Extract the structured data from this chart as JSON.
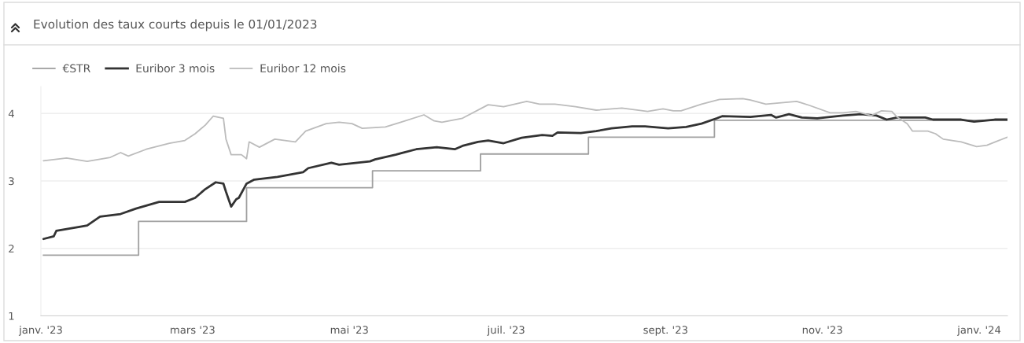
{
  "chart_data": {
    "type": "line",
    "title": "Evolution des taux courts depuis le 01/01/2023",
    "xlim": [
      "2023-01-01",
      "2024-01-12"
    ],
    "xticks": [
      {
        "value": "2023-01-01",
        "label": "janv. '23"
      },
      {
        "value": "2023-03-01",
        "label": "mars '23"
      },
      {
        "value": "2023-05-01",
        "label": "mai '23"
      },
      {
        "value": "2023-07-01",
        "label": "juil. '23"
      },
      {
        "value": "2023-09-01",
        "label": "sept. '23"
      },
      {
        "value": "2023-11-01",
        "label": "nov. '23"
      },
      {
        "value": "2024-01-01",
        "label": "janv. '24"
      }
    ],
    "ylim": [
      1,
      4.4
    ],
    "yticks": [
      1,
      2,
      3,
      4
    ],
    "grid": "y",
    "legend": "top left",
    "series": [
      {
        "name": "€STR",
        "type": "step",
        "color": "#a0a0a0",
        "x": [
          "2023-01-02",
          "2023-02-08",
          "2023-03-22",
          "2023-05-10",
          "2023-06-21",
          "2023-08-02",
          "2023-09-20",
          "2024-01-12"
        ],
        "values": [
          1.9,
          2.4,
          2.9,
          3.15,
          3.4,
          3.65,
          3.9,
          3.9
        ]
      },
      {
        "name": "Euribor 3 mois",
        "color": "#333333",
        "x": [
          "2023-01-02",
          "2023-01-06",
          "2023-01-07",
          "2023-01-16",
          "2023-01-19",
          "2023-01-24",
          "2023-02-01",
          "2023-02-07",
          "2023-02-16",
          "2023-02-26",
          "2023-03-02",
          "2023-03-06",
          "2023-03-10",
          "2023-03-13",
          "2023-03-14",
          "2023-03-16",
          "2023-03-18",
          "2023-03-19",
          "2023-03-22",
          "2023-03-25",
          "2023-04-03",
          "2023-04-13",
          "2023-04-15",
          "2023-04-24",
          "2023-04-27",
          "2023-05-09",
          "2023-05-11",
          "2023-05-19",
          "2023-05-27",
          "2023-06-04",
          "2023-06-11",
          "2023-06-14",
          "2023-06-20",
          "2023-06-24",
          "2023-06-30",
          "2023-07-07",
          "2023-07-15",
          "2023-07-19",
          "2023-07-21",
          "2023-07-30",
          "2023-08-05",
          "2023-08-11",
          "2023-08-19",
          "2023-08-24",
          "2023-09-02",
          "2023-09-09",
          "2023-09-15",
          "2023-09-21",
          "2023-09-23",
          "2023-10-04",
          "2023-10-12",
          "2023-10-14",
          "2023-10-19",
          "2023-10-24",
          "2023-10-30",
          "2023-11-09",
          "2023-11-16",
          "2023-11-22",
          "2023-11-26",
          "2023-11-30",
          "2023-12-11",
          "2023-12-14",
          "2023-12-25",
          "2023-12-30",
          "2024-01-07",
          "2024-01-12"
        ],
        "values": [
          2.14,
          2.18,
          2.26,
          2.32,
          2.34,
          2.47,
          2.51,
          2.59,
          2.69,
          2.69,
          2.75,
          2.88,
          2.98,
          2.96,
          2.84,
          2.62,
          2.73,
          2.75,
          2.96,
          3.02,
          3.06,
          3.13,
          3.19,
          3.27,
          3.24,
          3.29,
          3.32,
          3.39,
          3.47,
          3.5,
          3.47,
          3.52,
          3.58,
          3.6,
          3.56,
          3.64,
          3.68,
          3.67,
          3.72,
          3.71,
          3.74,
          3.78,
          3.81,
          3.81,
          3.78,
          3.8,
          3.85,
          3.93,
          3.96,
          3.95,
          3.98,
          3.94,
          3.99,
          3.94,
          3.93,
          3.97,
          3.99,
          3.97,
          3.91,
          3.94,
          3.94,
          3.91,
          3.91,
          3.88,
          3.91,
          3.91
        ]
      },
      {
        "name": "Euribor 12 mois",
        "color": "#bcbcbc",
        "x": [
          "2023-01-02",
          "2023-01-11",
          "2023-01-19",
          "2023-01-28",
          "2023-02-01",
          "2023-02-04",
          "2023-02-11",
          "2023-02-20",
          "2023-02-26",
          "2023-03-02",
          "2023-03-06",
          "2023-03-09",
          "2023-03-13",
          "2023-03-14",
          "2023-03-16",
          "2023-03-20",
          "2023-03-22",
          "2023-03-23",
          "2023-03-27",
          "2023-04-02",
          "2023-04-10",
          "2023-04-14",
          "2023-04-22",
          "2023-04-27",
          "2023-05-02",
          "2023-05-06",
          "2023-05-15",
          "2023-05-21",
          "2023-05-30",
          "2023-06-03",
          "2023-06-06",
          "2023-06-14",
          "2023-06-24",
          "2023-06-30",
          "2023-07-09",
          "2023-07-14",
          "2023-07-20",
          "2023-07-28",
          "2023-08-05",
          "2023-08-15",
          "2023-08-25",
          "2023-08-31",
          "2023-09-04",
          "2023-09-07",
          "2023-09-15",
          "2023-09-22",
          "2023-10-01",
          "2023-10-04",
          "2023-10-10",
          "2023-10-16",
          "2023-10-22",
          "2023-10-27",
          "2023-11-04",
          "2023-11-09",
          "2023-11-14",
          "2023-11-20",
          "2023-11-24",
          "2023-11-28",
          "2023-11-30",
          "2023-12-04",
          "2023-12-06",
          "2023-12-12",
          "2023-12-15",
          "2023-12-18",
          "2023-12-25",
          "2023-12-31",
          "2024-01-04",
          "2024-01-12"
        ],
        "values": [
          3.3,
          3.34,
          3.29,
          3.35,
          3.42,
          3.37,
          3.47,
          3.56,
          3.6,
          3.7,
          3.83,
          3.96,
          3.93,
          3.62,
          3.39,
          3.39,
          3.33,
          3.58,
          3.5,
          3.62,
          3.58,
          3.74,
          3.85,
          3.87,
          3.85,
          3.78,
          3.8,
          3.87,
          3.98,
          3.89,
          3.87,
          3.93,
          4.13,
          4.1,
          4.18,
          4.14,
          4.14,
          4.1,
          4.05,
          4.08,
          4.03,
          4.07,
          4.04,
          4.04,
          4.14,
          4.21,
          4.22,
          4.2,
          4.14,
          4.16,
          4.18,
          4.12,
          4.01,
          4.01,
          4.03,
          3.97,
          4.04,
          4.03,
          3.95,
          3.85,
          3.74,
          3.74,
          3.7,
          3.62,
          3.58,
          3.51,
          3.53,
          3.65
        ]
      }
    ]
  }
}
